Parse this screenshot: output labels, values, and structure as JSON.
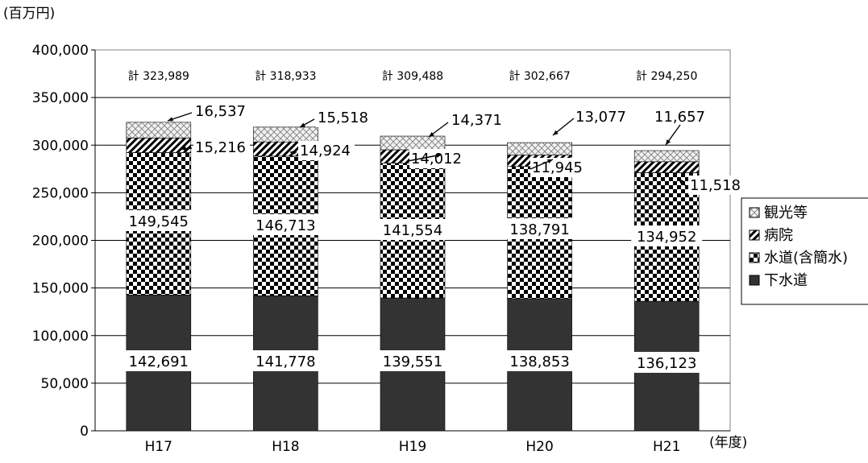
{
  "chart_data": {
    "type": "bar",
    "stacked": true,
    "y_unit": "(百万円)",
    "x_unit": "(年度)",
    "categories": [
      "H17",
      "H18",
      "H19",
      "H20",
      "H21"
    ],
    "ylim": [
      0,
      400000
    ],
    "yticks": [
      0,
      50000,
      100000,
      150000,
      200000,
      250000,
      300000,
      350000,
      400000
    ],
    "ytick_labels": [
      "0",
      "50,000",
      "100,000",
      "150,000",
      "200,000",
      "250,000",
      "300,000",
      "350,000",
      "400,000"
    ],
    "grid": true,
    "legend_position": "right",
    "series": [
      {
        "name": "下水道",
        "values": [
          142691,
          141778,
          139551,
          138853,
          136123
        ],
        "labels": [
          "142,691",
          "141,778",
          "139,551",
          "138,853",
          "136,123"
        ],
        "pattern": "solid"
      },
      {
        "name": "水道(含簡水)",
        "values": [
          149545,
          146713,
          141554,
          138791,
          134952
        ],
        "labels": [
          "149,545",
          "146,713",
          "141,554",
          "138,791",
          "134,952"
        ],
        "pattern": "checker"
      },
      {
        "name": "病院",
        "values": [
          15216,
          14924,
          14012,
          11945,
          11518
        ],
        "labels": [
          "15,216",
          "14,924",
          "14,012",
          "11,945",
          "11,518"
        ],
        "pattern": "diagonal"
      },
      {
        "name": "観光等",
        "values": [
          16537,
          15518,
          14371,
          13077,
          11657
        ],
        "labels": [
          "16,537",
          "15,518",
          "14,371",
          "13,077",
          "11,657"
        ],
        "pattern": "crosshatch"
      }
    ],
    "totals": [
      "計 323,989",
      "計 318,933",
      "計 309,488",
      "計 302,667",
      "計 294,250"
    ]
  }
}
